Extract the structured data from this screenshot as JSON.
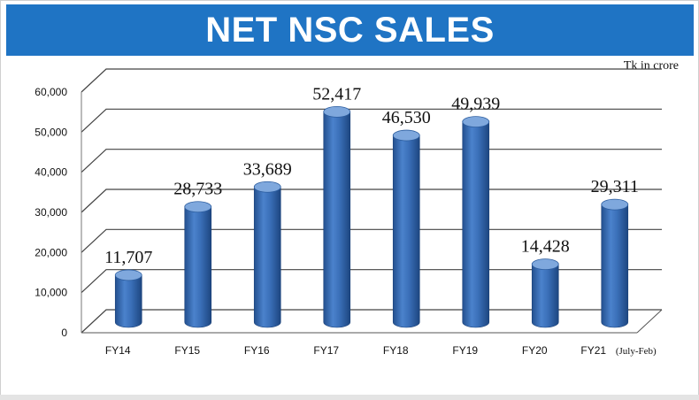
{
  "title": "NET NSC SALES",
  "unit_note": "Tk in crore",
  "colors": {
    "banner": "#1f74c4",
    "bar_main": "#3a6fb8",
    "bar_light": "#7fa8dd",
    "bar_dark": "#23508f",
    "grid": "#444444"
  },
  "chart_data": {
    "type": "bar",
    "title": "NET NSC SALES",
    "categories": [
      "FY14",
      "FY15",
      "FY16",
      "FY17",
      "FY18",
      "FY19",
      "FY20",
      "FY21"
    ],
    "category_notes": [
      "",
      "",
      "",
      "",
      "",
      "",
      "",
      "(July-Feb)"
    ],
    "values": [
      11707,
      28733,
      33689,
      52417,
      46530,
      49939,
      14428,
      29311
    ],
    "value_labels": [
      "11,707",
      "28,733",
      "33,689",
      "52,417",
      "46,530",
      "49,939",
      "14,428",
      "29,311"
    ],
    "ylim": [
      0,
      60000
    ],
    "yticks": [
      0,
      10000,
      20000,
      30000,
      40000,
      50000,
      60000
    ],
    "ytick_labels": [
      "0",
      "10,000",
      "20,000",
      "30,000",
      "40,000",
      "50,000",
      "60,000"
    ],
    "xlabel": "",
    "ylabel": "",
    "grid": true,
    "style": "3d-cylinder"
  }
}
